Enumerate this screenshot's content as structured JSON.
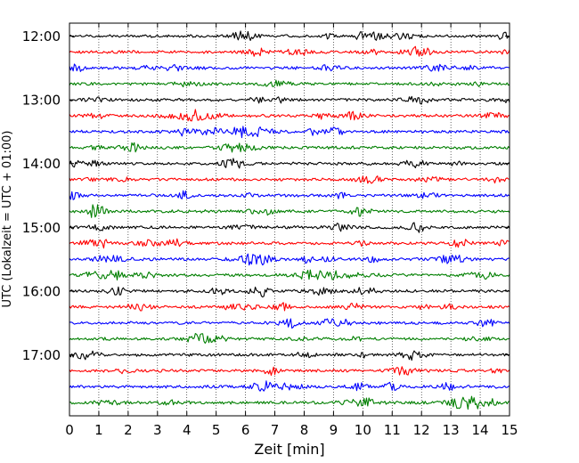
{
  "chart_data": {
    "type": "line",
    "title": "",
    "xlabel": "Zeit  [min]",
    "ylabel": "UTC (Lokalzeit = UTC + 01:00)",
    "xlim": [
      0,
      15
    ],
    "xticks": [
      0,
      1,
      2,
      3,
      4,
      5,
      6,
      7,
      8,
      9,
      10,
      11,
      12,
      13,
      14,
      15
    ],
    "yticks": [
      {
        "time": "12:00",
        "minutes": 720
      },
      {
        "time": "13:00",
        "minutes": 780
      },
      {
        "time": "14:00",
        "minutes": 840
      },
      {
        "time": "15:00",
        "minutes": 900
      },
      {
        "time": "16:00",
        "minutes": 960
      },
      {
        "time": "17:00",
        "minutes": 1020
      }
    ],
    "grid": "vertical dotted at every minute",
    "trace_start_minutes": 720,
    "trace_interval_minutes": 15,
    "trace_count": 24,
    "trace_colors": [
      "#000000",
      "#ff0000",
      "#0000ff",
      "#007f00"
    ],
    "trace_samples_per_minute": 24
  }
}
